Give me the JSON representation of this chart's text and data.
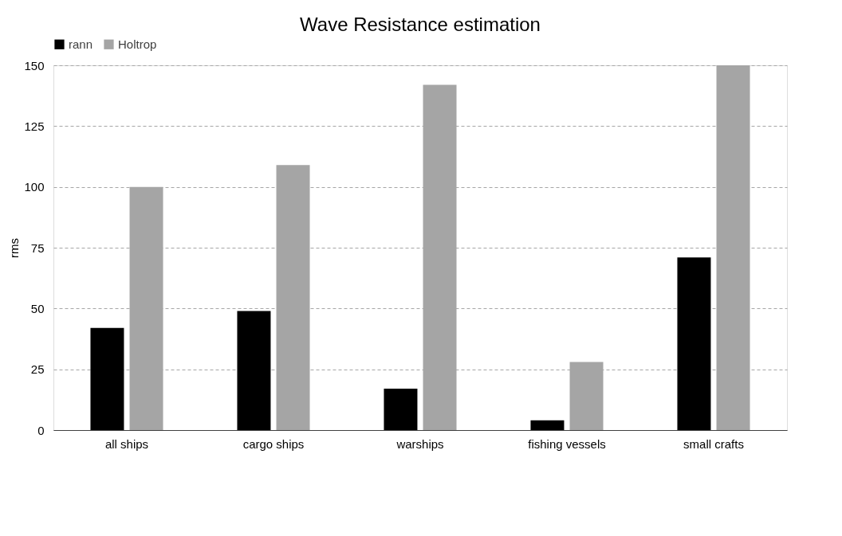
{
  "chart_data": {
    "type": "bar",
    "title": "Wave Resistance estimation",
    "ylabel": "rms",
    "categories": [
      "all ships",
      "cargo ships",
      "warships",
      "fishing vessels",
      "small crafts"
    ],
    "series": [
      {
        "name": "rann",
        "color": "#000000",
        "values": [
          42,
          49,
          17,
          4,
          71
        ]
      },
      {
        "name": "Holtrop",
        "color": "#a5a5a5",
        "values": [
          100,
          109,
          142,
          28,
          150
        ]
      }
    ],
    "ylim": [
      0,
      150
    ],
    "yticks": [
      0,
      25,
      50,
      75,
      100,
      125,
      150
    ],
    "grid": "y",
    "legend": "top"
  }
}
